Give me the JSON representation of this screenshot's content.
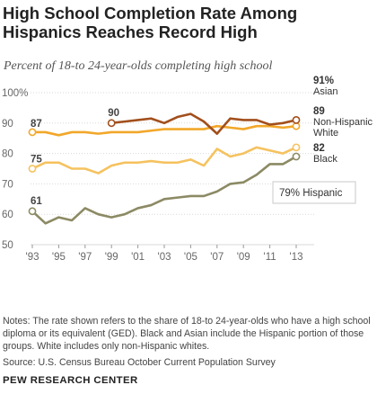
{
  "title": "High School Completion Rate Among Hispanics Reaches Record High",
  "chart_data": {
    "type": "line",
    "subtitle": "Percent of 18-to 24-year-olds completing  high school",
    "years": [
      1993,
      1994,
      1995,
      1996,
      1997,
      1998,
      1999,
      2000,
      2001,
      2002,
      2003,
      2004,
      2005,
      2006,
      2007,
      2008,
      2009,
      2010,
      2011,
      2012,
      2013
    ],
    "x_tick_labels": [
      "'93",
      "'95",
      "'97",
      "'99",
      "'01",
      "'03",
      "'05",
      "'07",
      "'09",
      "'11",
      "'13"
    ],
    "x_tick_years": [
      1993,
      1995,
      1997,
      1999,
      2001,
      2003,
      2005,
      2007,
      2009,
      2011,
      2013
    ],
    "y_tick_labels": [
      "100%",
      "90",
      "80",
      "70",
      "60",
      "50"
    ],
    "y_tick_values": [
      100,
      90,
      80,
      70,
      60,
      50
    ],
    "ylim": [
      48,
      101
    ],
    "grid": true,
    "series": [
      {
        "name": "Asian",
        "color": "#a24f1c",
        "start_year": 1999,
        "values": [
          90,
          90.5,
          91,
          91.5,
          90,
          92,
          93,
          90.5,
          86.5,
          91.5,
          91,
          91,
          89.5,
          90,
          91
        ],
        "start_label": "90",
        "end_label": "91%"
      },
      {
        "name": "Non-Hispanic White",
        "name_lines": [
          "Non-Hispanic",
          "White"
        ],
        "color": "#f2a72a",
        "start_year": 1993,
        "values": [
          87,
          87,
          86,
          87,
          87,
          86.5,
          87,
          87,
          87,
          87.5,
          88,
          88,
          88,
          88,
          89,
          88.5,
          88,
          89,
          89,
          88.5,
          89
        ],
        "start_label": "87",
        "end_label": "89"
      },
      {
        "name": "Black",
        "color": "#f5c25f",
        "start_year": 1993,
        "values": [
          75,
          77,
          77,
          75,
          75,
          73.5,
          76,
          77,
          77,
          77.5,
          77,
          77,
          78,
          76,
          81.5,
          79,
          80,
          82,
          81,
          80,
          82
        ],
        "start_label": "75",
        "end_label": "82"
      },
      {
        "name": "Hispanic",
        "color": "#8c8a64",
        "start_year": 1993,
        "values": [
          61,
          57,
          59,
          58,
          62,
          60,
          59,
          60,
          62,
          63,
          65,
          65.5,
          66,
          66,
          67.5,
          70,
          70.5,
          73,
          76.5,
          76.5,
          79
        ],
        "start_label": "61",
        "end_label": "79%",
        "callout": "79% Hispanic"
      }
    ]
  },
  "notes": "Notes: The rate shown refers to the share of 18-to 24-year-olds who have a high school diploma or its equivalent (GED).  Black and Asian include the Hispanic portion of those groups.  White includes only non-Hispanic whites.",
  "source": "Source: U.S. Census Bureau October Current Population Survey",
  "organization": "PEW RESEARCH CENTER"
}
